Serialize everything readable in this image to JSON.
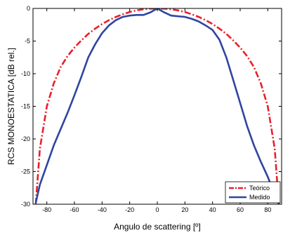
{
  "chart_data": {
    "type": "line",
    "title": "",
    "xlabel": "Angulo de scattering [º]",
    "ylabel": "RCS MONOESTATICA [dB rel.]",
    "xlim": [
      -90,
      90
    ],
    "ylim": [
      -30,
      0
    ],
    "xticks": [
      -80,
      -60,
      -40,
      -20,
      0,
      20,
      40,
      60,
      80
    ],
    "yticks": [
      0,
      -5,
      -10,
      -15,
      -20,
      -25,
      -30
    ],
    "grid": false,
    "legend_position": "bottom-right",
    "series": [
      {
        "name": "Teórico",
        "color": "#e8202a",
        "style": "dashdot",
        "x": [
          -88,
          -85,
          -80,
          -75,
          -70,
          -65,
          -60,
          -55,
          -50,
          -45,
          -40,
          -35,
          -30,
          -25,
          -20,
          -15,
          -10,
          -5,
          0,
          5,
          10,
          15,
          20,
          25,
          30,
          35,
          40,
          45,
          50,
          55,
          60,
          65,
          70,
          75,
          80,
          85,
          88
        ],
        "y": [
          -30,
          -21.5,
          -15.0,
          -11.5,
          -9.0,
          -7.3,
          -6.0,
          -4.9,
          -3.9,
          -3.1,
          -2.4,
          -1.8,
          -1.3,
          -0.9,
          -0.55,
          -0.3,
          -0.13,
          -0.03,
          0,
          -0.03,
          -0.13,
          -0.3,
          -0.55,
          -0.9,
          -1.3,
          -1.8,
          -2.4,
          -3.1,
          -3.9,
          -4.9,
          -6.0,
          -7.3,
          -9.0,
          -11.5,
          -15.0,
          -21.5,
          -30
        ]
      },
      {
        "name": "Medido",
        "color": "#2f45a0",
        "style": "solid",
        "x": [
          -88,
          -85,
          -80,
          -75,
          -70,
          -65,
          -60,
          -55,
          -50,
          -45,
          -40,
          -35,
          -30,
          -25,
          -20,
          -15,
          -10,
          -5,
          0,
          5,
          10,
          15,
          20,
          25,
          30,
          35,
          40,
          45,
          50,
          55,
          60,
          65,
          70,
          75,
          80,
          85,
          88
        ],
        "y": [
          -29.8,
          -27.0,
          -24.0,
          -21.0,
          -18.5,
          -16.0,
          -13.3,
          -10.5,
          -7.5,
          -5.5,
          -3.8,
          -2.6,
          -1.8,
          -1.3,
          -1.1,
          -1.0,
          -1.0,
          -0.6,
          0,
          -0.6,
          -1.1,
          -1.2,
          -1.3,
          -1.6,
          -2.0,
          -2.6,
          -3.3,
          -4.8,
          -7.5,
          -11.0,
          -14.5,
          -18.0,
          -21.0,
          -23.5,
          -25.8,
          -28.5,
          -30
        ]
      }
    ]
  }
}
